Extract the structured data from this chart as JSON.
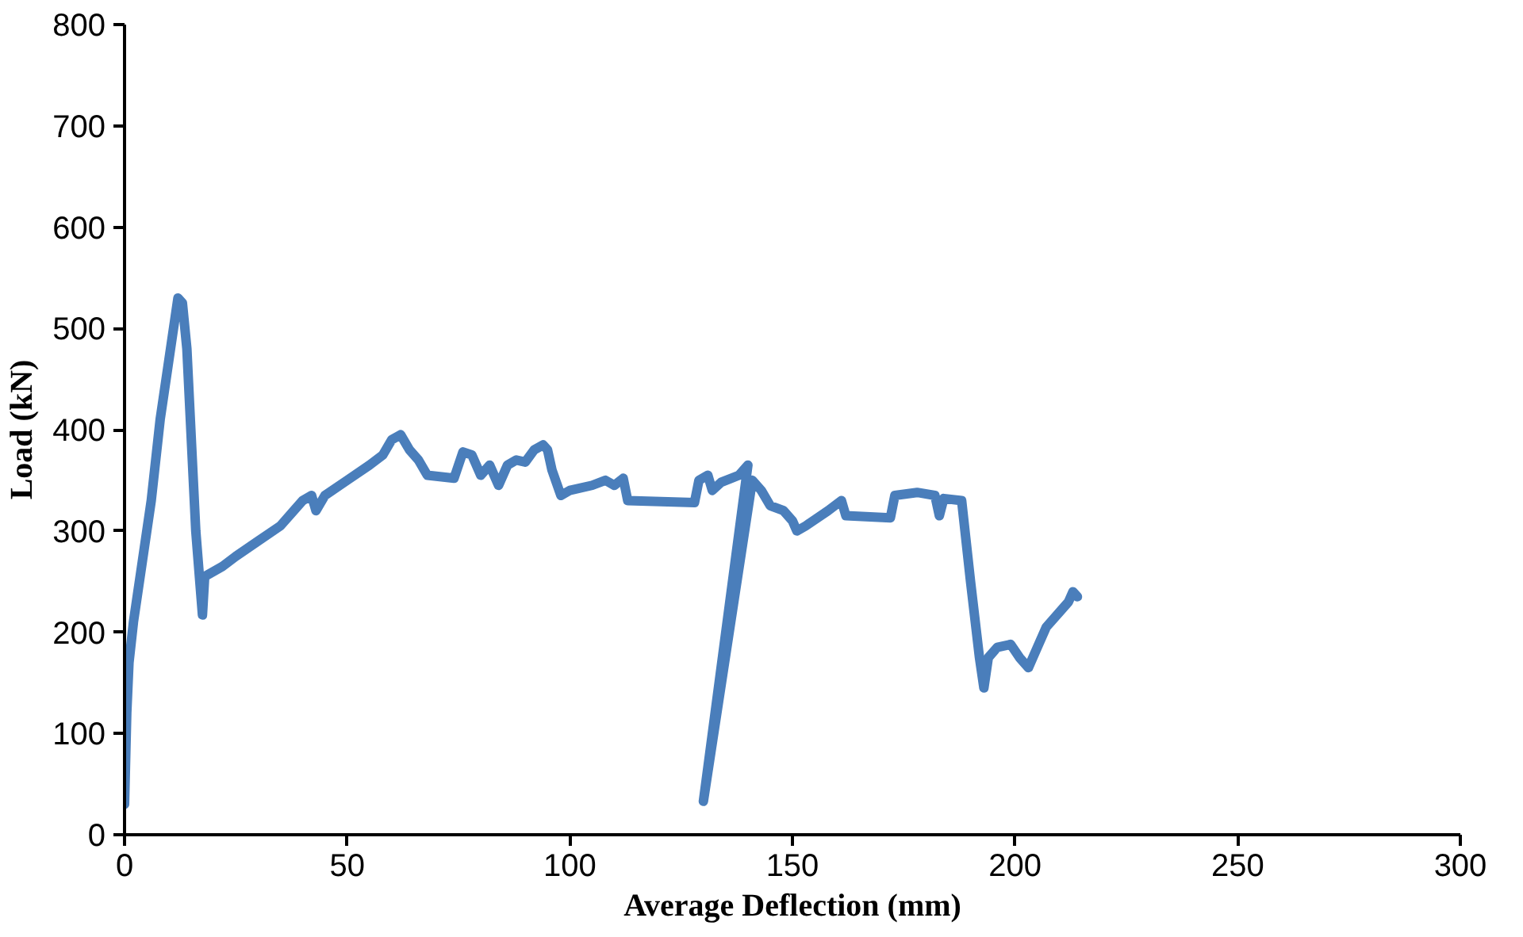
{
  "chart_data": {
    "type": "line",
    "xlabel": "Average Deflection (mm)",
    "ylabel": "Load (kN)",
    "xlim": [
      0,
      300
    ],
    "ylim": [
      0,
      800
    ],
    "xticks": [
      0,
      50,
      100,
      150,
      200,
      250,
      300
    ],
    "yticks": [
      0,
      100,
      200,
      300,
      400,
      500,
      600,
      700,
      800
    ],
    "grid": false,
    "marker": "none",
    "line_style": "solid",
    "series": [
      {
        "color": "#4a7ebb",
        "x": [
          0,
          0.5,
          1,
          2,
          4,
          6,
          8,
          10,
          12,
          13,
          14,
          16,
          17.5,
          18,
          22,
          25,
          30,
          35,
          38,
          40,
          42,
          43,
          45,
          50,
          55,
          58,
          60,
          62,
          64,
          66,
          68,
          74,
          76,
          78,
          80,
          82,
          84,
          86,
          88,
          90,
          92,
          94,
          95,
          96,
          98,
          100,
          105,
          108,
          110,
          112,
          113,
          128,
          129,
          131,
          132,
          134,
          138,
          140,
          130,
          141,
          143,
          145,
          148,
          150,
          151,
          153,
          158,
          161,
          162,
          172,
          173,
          178,
          182,
          183,
          184,
          188,
          190,
          192,
          193,
          194,
          196,
          199,
          201,
          203,
          205,
          207,
          210,
          212,
          213,
          214
        ],
        "values": [
          30,
          120,
          170,
          210,
          270,
          330,
          410,
          470,
          530,
          525,
          480,
          300,
          217,
          255,
          265,
          275,
          290,
          305,
          320,
          330,
          335,
          320,
          335,
          350,
          365,
          375,
          390,
          395,
          380,
          370,
          355,
          352,
          378,
          375,
          355,
          365,
          345,
          365,
          370,
          368,
          380,
          385,
          380,
          360,
          335,
          340,
          345,
          350,
          345,
          352,
          330,
          328,
          350,
          355,
          340,
          348,
          355,
          365,
          33,
          350,
          340,
          325,
          320,
          310,
          300,
          305,
          320,
          330,
          315,
          313,
          335,
          338,
          335,
          315,
          332,
          330,
          250,
          175,
          145,
          175,
          185,
          188,
          175,
          165,
          185,
          205,
          220,
          230,
          240,
          235
        ]
      }
    ]
  }
}
